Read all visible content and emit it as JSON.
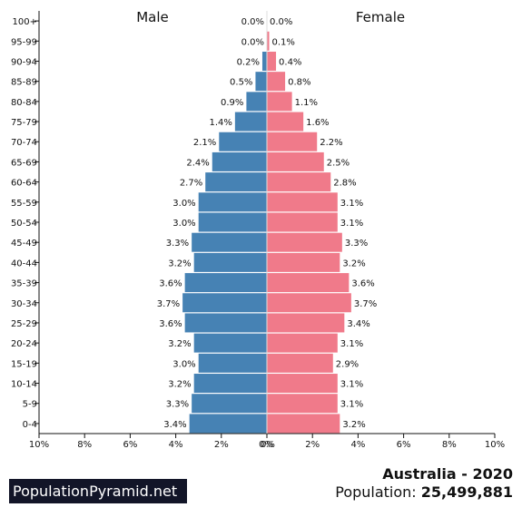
{
  "header": {
    "male_label": "Male",
    "female_label": "Female"
  },
  "footer": {
    "brand": "PopulationPyramid.net",
    "country_year": "Australia - 2020",
    "population_label": "Population:",
    "population_value": "25,499,881"
  },
  "colors": {
    "male": "#4682b4",
    "female": "#f07a8a",
    "brand_bg": "#121528"
  },
  "chart_data": {
    "type": "bar",
    "orientation": "horizontal-population-pyramid",
    "categories": [
      "0-4",
      "5-9",
      "10-14",
      "15-19",
      "20-24",
      "25-29",
      "30-34",
      "35-39",
      "40-44",
      "45-49",
      "50-54",
      "55-59",
      "60-64",
      "65-69",
      "70-74",
      "75-79",
      "80-84",
      "85-89",
      "90-94",
      "95-99",
      "100+"
    ],
    "series": [
      {
        "name": "Male",
        "values": [
          3.4,
          3.3,
          3.2,
          3.0,
          3.2,
          3.6,
          3.7,
          3.6,
          3.2,
          3.3,
          3.0,
          3.0,
          2.7,
          2.4,
          2.1,
          1.4,
          0.9,
          0.5,
          0.2,
          0.0,
          0.0
        ]
      },
      {
        "name": "Female",
        "values": [
          3.2,
          3.1,
          3.1,
          2.9,
          3.1,
          3.4,
          3.7,
          3.6,
          3.2,
          3.3,
          3.1,
          3.1,
          2.8,
          2.5,
          2.2,
          1.6,
          1.1,
          0.8,
          0.4,
          0.1,
          0.0
        ]
      }
    ],
    "xlim": [
      -10,
      10
    ],
    "xticks": [
      "10%",
      "8%",
      "6%",
      "4%",
      "2%",
      "0%",
      "0%",
      "2%",
      "4%",
      "6%",
      "8%",
      "10%"
    ],
    "grid": false,
    "legend": "top"
  }
}
